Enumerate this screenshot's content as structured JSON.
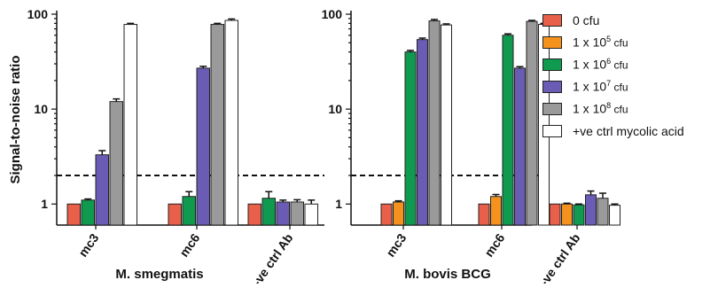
{
  "chart_data": {
    "type": "bar",
    "ylabel": "Signal-to-noise ratio",
    "yscale": "log",
    "ylim": [
      0.6,
      100
    ],
    "yticks": [
      "1",
      "10",
      "100"
    ],
    "threshold": 2,
    "series": [
      {
        "name": "0 cfu",
        "color": "#e8604a"
      },
      {
        "name": "1 x 10^5 cfu",
        "color": "#f5921e"
      },
      {
        "name": "1 x 10^6 cfu",
        "color": "#0f9a4f"
      },
      {
        "name": "1 x 10^7 cfu",
        "color": "#6a5bb5"
      },
      {
        "name": "1 x 10^8 cfu",
        "color": "#9a9a9a"
      },
      {
        "name": "+ve ctrl mycolic acid",
        "color": "#ffffff"
      }
    ],
    "panels": [
      {
        "xlabel": "M. smegmatis",
        "categories": [
          {
            "label": "mc3",
            "bars": [
              {
                "series": 0,
                "value": 1.0,
                "err": 0
              },
              {
                "series": 2,
                "value": 1.1,
                "err": 0.03
              },
              {
                "series": 3,
                "value": 3.3,
                "err": 0.35
              },
              {
                "series": 4,
                "value": 12,
                "err": 0.8
              },
              {
                "series": 5,
                "value": 78,
                "err": 2
              }
            ]
          },
          {
            "label": "mc6",
            "bars": [
              {
                "series": 0,
                "value": 1.0,
                "err": 0
              },
              {
                "series": 2,
                "value": 1.2,
                "err": 0.15
              },
              {
                "series": 3,
                "value": 27,
                "err": 1.2
              },
              {
                "series": 4,
                "value": 78,
                "err": 2
              },
              {
                "series": 5,
                "value": 86,
                "err": 3
              }
            ]
          },
          {
            "label": "-ve ctrl Ab",
            "bars": [
              {
                "series": 0,
                "value": 1.0,
                "err": 0
              },
              {
                "series": 2,
                "value": 1.15,
                "err": 0.2
              },
              {
                "series": 3,
                "value": 1.05,
                "err": 0.05
              },
              {
                "series": 4,
                "value": 1.05,
                "err": 0.06
              },
              {
                "series": 5,
                "value": 1.0,
                "err": 0.1
              }
            ]
          }
        ]
      },
      {
        "xlabel": "M. bovis BCG",
        "categories": [
          {
            "label": "mc3",
            "bars": [
              {
                "series": 0,
                "value": 1.0,
                "err": 0
              },
              {
                "series": 1,
                "value": 1.05,
                "err": 0.03
              },
              {
                "series": 2,
                "value": 40,
                "err": 1.5
              },
              {
                "series": 3,
                "value": 54,
                "err": 2
              },
              {
                "series": 4,
                "value": 85,
                "err": 3
              },
              {
                "series": 5,
                "value": 77,
                "err": 2
              }
            ]
          },
          {
            "label": "mc6",
            "bars": [
              {
                "series": 0,
                "value": 1.0,
                "err": 0
              },
              {
                "series": 1,
                "value": 1.2,
                "err": 0.06
              },
              {
                "series": 2,
                "value": 60,
                "err": 2
              },
              {
                "series": 3,
                "value": 27,
                "err": 1
              },
              {
                "series": 4,
                "value": 84,
                "err": 2
              },
              {
                "series": 5,
                "value": 78,
                "err": 2
              }
            ]
          },
          {
            "label": "-ve ctrl Ab",
            "bars": [
              {
                "series": 0,
                "value": 1.0,
                "err": 0
              },
              {
                "series": 1,
                "value": 1.0,
                "err": 0.02
              },
              {
                "series": 2,
                "value": 0.98,
                "err": 0.02
              },
              {
                "series": 3,
                "value": 1.25,
                "err": 0.12
              },
              {
                "series": 4,
                "value": 1.15,
                "err": 0.15
              },
              {
                "series": 5,
                "value": 0.97,
                "err": 0.03
              }
            ]
          }
        ]
      }
    ]
  },
  "legend": [
    {
      "prefix": "0  cfu",
      "exp": "",
      "unit": ""
    },
    {
      "prefix": "1 x 10",
      "exp": "5",
      "unit": " cfu"
    },
    {
      "prefix": "1 x 10",
      "exp": "6",
      "unit": " cfu"
    },
    {
      "prefix": "1 x 10",
      "exp": "7",
      "unit": " cfu"
    },
    {
      "prefix": "1 x 10",
      "exp": "8",
      "unit": " cfu"
    },
    {
      "prefix": "+ve ctrl mycolic acid",
      "exp": "",
      "unit": ""
    }
  ]
}
